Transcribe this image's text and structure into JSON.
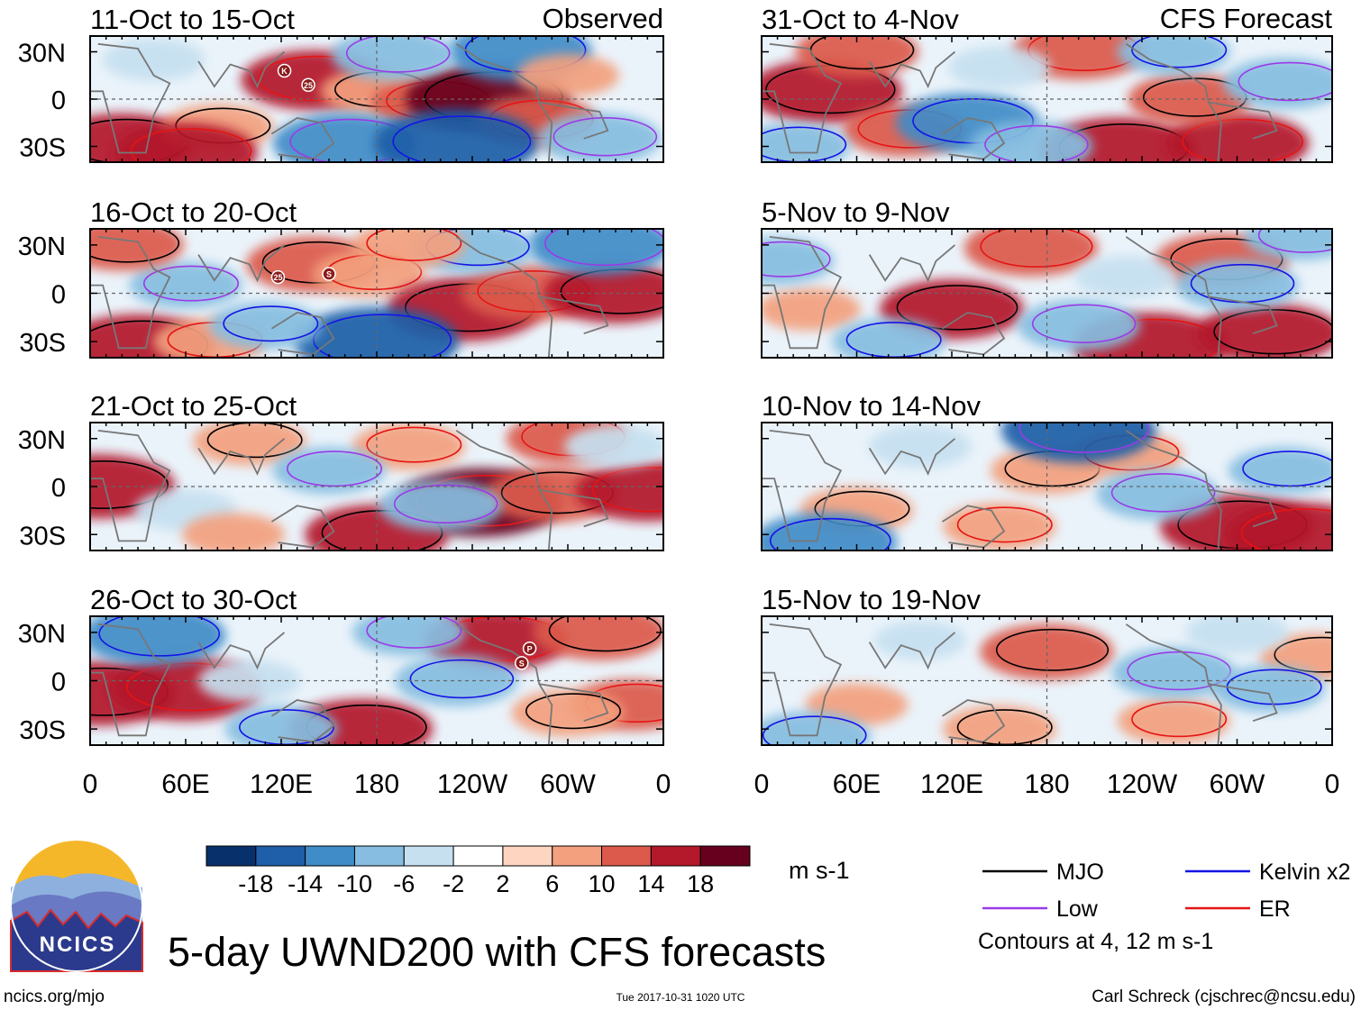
{
  "figure": {
    "title": "5-day UWND200 with CFS forecasts",
    "source_url": "ncics.org/mjo",
    "timestamp": "Tue 2017-10-31 1020 UTC",
    "credit": "Carl Schreck (cjschrec@ncsu.edu)",
    "logo_text": "NCICS"
  },
  "columns": [
    {
      "heading": "Observed"
    },
    {
      "heading": "CFS Forecast"
    }
  ],
  "chart_data": {
    "type": "heatmap",
    "variable": "UWND200",
    "units": "m s-1",
    "lat_ticks": [
      "30N",
      "0",
      "30S"
    ],
    "lat_range": [
      -40,
      40
    ],
    "lon_ticks": [
      "0",
      "60E",
      "120E",
      "180",
      "120W",
      "60W",
      "0"
    ],
    "lon_range": [
      0,
      360
    ],
    "panels": [
      {
        "title": "11-Oct to 15-Oct",
        "column": "Observed",
        "storms": [
          {
            "label": "K",
            "lon": 122,
            "lat": 18
          },
          {
            "label": "25",
            "lon": 137,
            "lat": 9
          }
        ],
        "blobs": [
          {
            "lon": 20,
            "lat": -28,
            "v": 14
          },
          {
            "lon": 140,
            "lat": 12,
            "v": 14
          },
          {
            "lon": 180,
            "lat": 5,
            "v": 8
          },
          {
            "lon": 215,
            "lat": -2,
            "v": 10
          },
          {
            "lon": 250,
            "lat": 0,
            "v": 18
          },
          {
            "lon": 280,
            "lat": -14,
            "v": 10
          },
          {
            "lon": 80,
            "lat": -18,
            "v": 8
          },
          {
            "lon": 270,
            "lat": 30,
            "v": -14
          },
          {
            "lon": 190,
            "lat": 28,
            "v": -10
          },
          {
            "lon": 60,
            "lat": -34,
            "v": 14
          },
          {
            "lon": 160,
            "lat": -28,
            "v": -14
          },
          {
            "lon": 230,
            "lat": -28,
            "v": -18
          },
          {
            "lon": 320,
            "lat": -25,
            "v": -10
          },
          {
            "lon": 40,
            "lat": 25,
            "v": -6
          },
          {
            "lon": 300,
            "lat": 15,
            "v": 6
          }
        ]
      },
      {
        "title": "16-Oct to 20-Oct",
        "column": "Observed",
        "storms": [
          {
            "label": "25",
            "lon": 118,
            "lat": 10
          },
          {
            "label": "S",
            "lon": 150,
            "lat": 12
          }
        ],
        "blobs": [
          {
            "lon": 30,
            "lat": -33,
            "v": 16
          },
          {
            "lon": 75,
            "lat": -30,
            "v": 8
          },
          {
            "lon": 140,
            "lat": 18,
            "v": 12
          },
          {
            "lon": 175,
            "lat": 12,
            "v": 8
          },
          {
            "lon": 235,
            "lat": -10,
            "v": 16
          },
          {
            "lon": 275,
            "lat": 0,
            "v": 12
          },
          {
            "lon": 330,
            "lat": 0,
            "v": 14
          },
          {
            "lon": 180,
            "lat": -30,
            "v": -18
          },
          {
            "lon": 320,
            "lat": 30,
            "v": -14
          },
          {
            "lon": 240,
            "lat": 28,
            "v": -10
          },
          {
            "lon": 60,
            "lat": 5,
            "v": -8
          },
          {
            "lon": 110,
            "lat": -20,
            "v": -8
          },
          {
            "lon": 20,
            "lat": 30,
            "v": 10
          },
          {
            "lon": 200,
            "lat": 30,
            "v": 8
          }
        ]
      },
      {
        "title": "21-Oct to 25-Oct",
        "column": "Observed",
        "storms": [],
        "blobs": [
          {
            "lon": 5,
            "lat": 0,
            "v": 16
          },
          {
            "lon": 245,
            "lat": -10,
            "v": 18
          },
          {
            "lon": 290,
            "lat": -5,
            "v": 12
          },
          {
            "lon": 350,
            "lat": -3,
            "v": 14
          },
          {
            "lon": 180,
            "lat": -30,
            "v": 14
          },
          {
            "lon": 300,
            "lat": 30,
            "v": 10
          },
          {
            "lon": 100,
            "lat": 28,
            "v": 8
          },
          {
            "lon": 200,
            "lat": 25,
            "v": 8
          },
          {
            "lon": 150,
            "lat": 10,
            "v": -8
          },
          {
            "lon": 60,
            "lat": -15,
            "v": -6
          },
          {
            "lon": 220,
            "lat": -12,
            "v": -10
          },
          {
            "lon": 90,
            "lat": -30,
            "v": 6
          },
          {
            "lon": 330,
            "lat": 25,
            "v": -6
          }
        ]
      },
      {
        "title": "26-Oct to 30-Oct",
        "column": "Observed",
        "storms": [
          {
            "label": "P",
            "lon": 276,
            "lat": 20
          },
          {
            "label": "S",
            "lon": 271,
            "lat": 11
          }
        ],
        "blobs": [
          {
            "lon": 5,
            "lat": -8,
            "v": 16
          },
          {
            "lon": 60,
            "lat": -5,
            "v": 16
          },
          {
            "lon": 170,
            "lat": -30,
            "v": 14
          },
          {
            "lon": 255,
            "lat": 25,
            "v": 14
          },
          {
            "lon": 320,
            "lat": 30,
            "v": 12
          },
          {
            "lon": 340,
            "lat": -15,
            "v": 10
          },
          {
            "lon": 300,
            "lat": -20,
            "v": 8
          },
          {
            "lon": 40,
            "lat": 28,
            "v": -14
          },
          {
            "lon": 100,
            "lat": 0,
            "v": -6
          },
          {
            "lon": 230,
            "lat": 0,
            "v": -10
          },
          {
            "lon": 200,
            "lat": 30,
            "v": -8
          },
          {
            "lon": 120,
            "lat": -30,
            "v": -8
          }
        ]
      },
      {
        "title": "31-Oct to 4-Nov",
        "column": "CFS Forecast",
        "storms": [],
        "blobs": [
          {
            "lon": 40,
            "lat": 5,
            "v": 16
          },
          {
            "lon": 90,
            "lat": -20,
            "v": 10
          },
          {
            "lon": 225,
            "lat": -32,
            "v": 16
          },
          {
            "lon": 300,
            "lat": -28,
            "v": 14
          },
          {
            "lon": 270,
            "lat": 0,
            "v": 10
          },
          {
            "lon": 200,
            "lat": 30,
            "v": 12
          },
          {
            "lon": 60,
            "lat": 30,
            "v": 10
          },
          {
            "lon": 130,
            "lat": -15,
            "v": -14
          },
          {
            "lon": 170,
            "lat": -30,
            "v": -10
          },
          {
            "lon": 260,
            "lat": 30,
            "v": -8
          },
          {
            "lon": 330,
            "lat": 10,
            "v": -10
          },
          {
            "lon": 20,
            "lat": -30,
            "v": -8
          },
          {
            "lon": 150,
            "lat": 20,
            "v": -6
          }
        ]
      },
      {
        "title": "5-Nov to 9-Nov",
        "column": "CFS Forecast",
        "storms": [],
        "blobs": [
          {
            "lon": 120,
            "lat": -10,
            "v": 14
          },
          {
            "lon": 245,
            "lat": -32,
            "v": 16
          },
          {
            "lon": 320,
            "lat": -25,
            "v": 14
          },
          {
            "lon": 170,
            "lat": 28,
            "v": 12
          },
          {
            "lon": 290,
            "lat": 20,
            "v": 12
          },
          {
            "lon": 30,
            "lat": -10,
            "v": 6
          },
          {
            "lon": 200,
            "lat": -20,
            "v": -10
          },
          {
            "lon": 300,
            "lat": 5,
            "v": -10
          },
          {
            "lon": 10,
            "lat": 20,
            "v": -8
          },
          {
            "lon": 230,
            "lat": 10,
            "v": -6
          },
          {
            "lon": 340,
            "lat": 35,
            "v": -8
          },
          {
            "lon": 80,
            "lat": -30,
            "v": -8
          }
        ]
      },
      {
        "title": "10-Nov to 14-Nov",
        "column": "CFS Forecast",
        "storms": [],
        "blobs": [
          {
            "lon": 60,
            "lat": -15,
            "v": 8
          },
          {
            "lon": 150,
            "lat": -25,
            "v": 8
          },
          {
            "lon": 300,
            "lat": -25,
            "v": 16
          },
          {
            "lon": 340,
            "lat": -30,
            "v": 16
          },
          {
            "lon": 180,
            "lat": 10,
            "v": 8
          },
          {
            "lon": 230,
            "lat": 20,
            "v": 8
          },
          {
            "lon": 200,
            "lat": 35,
            "v": -16
          },
          {
            "lon": 40,
            "lat": -35,
            "v": -14
          },
          {
            "lon": 250,
            "lat": -5,
            "v": -10
          },
          {
            "lon": 330,
            "lat": 10,
            "v": -8
          },
          {
            "lon": 100,
            "lat": 25,
            "v": -6
          }
        ]
      },
      {
        "title": "15-Nov to 19-Nov",
        "column": "CFS Forecast",
        "storms": [],
        "blobs": [
          {
            "lon": 180,
            "lat": 18,
            "v": 12
          },
          {
            "lon": 60,
            "lat": -15,
            "v": 6
          },
          {
            "lon": 150,
            "lat": -30,
            "v": 8
          },
          {
            "lon": 260,
            "lat": -25,
            "v": 8
          },
          {
            "lon": 350,
            "lat": 15,
            "v": 8
          },
          {
            "lon": 30,
            "lat": -35,
            "v": -10
          },
          {
            "lon": 260,
            "lat": 5,
            "v": -10
          },
          {
            "lon": 320,
            "lat": -5,
            "v": -8
          },
          {
            "lon": 100,
            "lat": 25,
            "v": -4
          },
          {
            "lon": 300,
            "lat": 30,
            "v": -6
          }
        ]
      }
    ],
    "colorbar": {
      "tick_labels": [
        "-18",
        "-14",
        "-10",
        "-6",
        "-2",
        "2",
        "6",
        "10",
        "14",
        "18"
      ],
      "colors": [
        "#08306b",
        "#1f5ea8",
        "#3f8cc8",
        "#86bde0",
        "#c6e0f0",
        "#ffffff",
        "#fdd5c0",
        "#f3a07e",
        "#dc5a4b",
        "#b3182b",
        "#67001f"
      ]
    },
    "legend": {
      "items": [
        {
          "name": "MJO",
          "color": "#000000"
        },
        {
          "name": "Kelvin x2",
          "color": "#1414e6"
        },
        {
          "name": "Low",
          "color": "#9a3be8"
        },
        {
          "name": "ER",
          "color": "#e61414"
        }
      ],
      "note": "Contours at 4, 12 m s-1"
    }
  }
}
